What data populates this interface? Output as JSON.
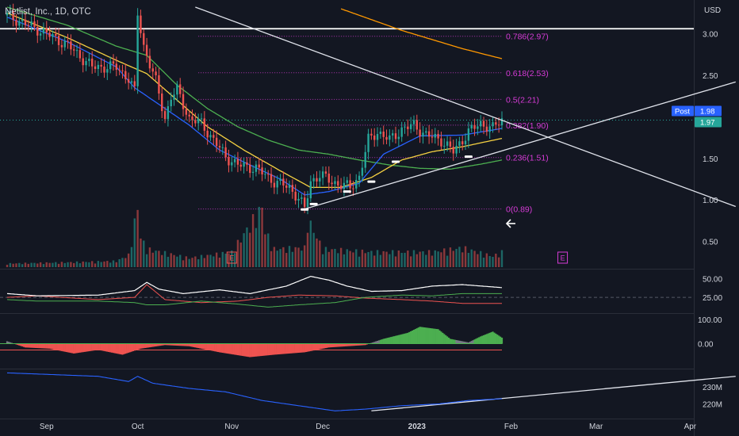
{
  "header": {
    "title": "Netlist, Inc., 1D, OTC"
  },
  "price_axis": {
    "currency": "USD",
    "ticks": [
      {
        "value": 3.0,
        "label": "3.00"
      },
      {
        "value": 2.5,
        "label": "2.50"
      },
      {
        "value": 2.0,
        "label": ""
      },
      {
        "value": 1.5,
        "label": "1.50"
      },
      {
        "value": 1.0,
        "label": "1.00"
      },
      {
        "value": 0.5,
        "label": "0.50"
      }
    ],
    "post_label": "Post",
    "post_value": "1.98",
    "last_value": "1.97",
    "post_price": 1.98,
    "last_price": 1.97
  },
  "osc1_axis": {
    "ticks": [
      {
        "value": 50,
        "label": "50.00"
      },
      {
        "value": 25,
        "label": "25.00"
      }
    ]
  },
  "osc2_axis": {
    "ticks": [
      {
        "value": 100,
        "label": "100.00"
      },
      {
        "value": 0,
        "label": "0.00"
      }
    ]
  },
  "obv_axis": {
    "ticks": [
      {
        "value": 230,
        "label": "230M"
      },
      {
        "value": 220,
        "label": "220M"
      }
    ]
  },
  "time_axis": {
    "labels": [
      {
        "label": "Sep",
        "day": 13,
        "bold": false
      },
      {
        "label": "Oct",
        "day": 43,
        "bold": false
      },
      {
        "label": "Nov",
        "day": 74,
        "bold": false
      },
      {
        "label": "Dec",
        "day": 104,
        "bold": false
      },
      {
        "label": "2023",
        "day": 135,
        "bold": true
      },
      {
        "label": "Feb",
        "day": 166,
        "bold": false
      },
      {
        "label": "Mar",
        "day": 194,
        "bold": false
      },
      {
        "label": "Apr",
        "day": 225,
        "bold": false
      }
    ]
  },
  "fib_levels": [
    {
      "label": "0.786(2.97)",
      "price": 2.97
    },
    {
      "label": "0.618(2.53)",
      "price": 2.53
    },
    {
      "label": "0.5(2.21)",
      "price": 2.21
    },
    {
      "label": "0.382(1.90)",
      "price": 1.9
    },
    {
      "label": "0.236(1.51)",
      "price": 1.51
    },
    {
      "label": "0(0.89)",
      "price": 0.89
    }
  ],
  "earnings_markers": [
    {
      "label": "E",
      "day": 74
    },
    {
      "label": "E",
      "day": 183
    }
  ],
  "colors": {
    "up": "#26a69a",
    "down": "#ef5350",
    "fib": "#d63bd6",
    "ema_fast": "#2962ff",
    "ma_mid": "#f5d142",
    "ma_slow": "#4caf50",
    "ma_long": "#ff9800",
    "trend": "#e0e3eb",
    "obv": "#2962ff",
    "accent": "#2962ff"
  },
  "chart_data": {
    "type": "candlestick",
    "title": "Netlist, Inc., 1D, OTC",
    "ylim": [
      0.4,
      3.3
    ],
    "x_range_days": [
      0,
      240
    ],
    "resistance_level": 3.06,
    "anchors": {
      "candle_close": [
        [
          0,
          3.22
        ],
        [
          6,
          3.12
        ],
        [
          12,
          3.02
        ],
        [
          20,
          2.86
        ],
        [
          28,
          2.6
        ],
        [
          36,
          2.6
        ],
        [
          40,
          2.46
        ],
        [
          42,
          2.3
        ],
        [
          43,
          3.24
        ],
        [
          45,
          2.85
        ],
        [
          49,
          2.42
        ],
        [
          52,
          1.98
        ],
        [
          54,
          2.24
        ],
        [
          56,
          2.32
        ],
        [
          60,
          1.98
        ],
        [
          64,
          1.92
        ],
        [
          68,
          1.72
        ],
        [
          72,
          1.52
        ],
        [
          76,
          1.42
        ],
        [
          82,
          1.38
        ],
        [
          88,
          1.22
        ],
        [
          93,
          1.15
        ],
        [
          96,
          1.02
        ],
        [
          98,
          0.89
        ],
        [
          100,
          1.22
        ],
        [
          103,
          1.3
        ],
        [
          107,
          1.22
        ],
        [
          110,
          1.18
        ],
        [
          113,
          1.15
        ],
        [
          116,
          1.28
        ],
        [
          119,
          1.72
        ],
        [
          122,
          1.82
        ],
        [
          126,
          1.72
        ],
        [
          130,
          1.85
        ],
        [
          134,
          1.9
        ],
        [
          138,
          1.78
        ],
        [
          143,
          1.72
        ],
        [
          147,
          1.58
        ],
        [
          152,
          1.82
        ],
        [
          156,
          1.92
        ],
        [
          160,
          1.86
        ],
        [
          163,
          1.97
        ]
      ],
      "ema_fast": [
        [
          0,
          3.2
        ],
        [
          20,
          2.9
        ],
        [
          36,
          2.6
        ],
        [
          42,
          2.35
        ],
        [
          50,
          2.15
        ],
        [
          60,
          1.9
        ],
        [
          70,
          1.6
        ],
        [
          80,
          1.42
        ],
        [
          90,
          1.25
        ],
        [
          98,
          1.06
        ],
        [
          106,
          1.1
        ],
        [
          116,
          1.2
        ],
        [
          124,
          1.55
        ],
        [
          136,
          1.77
        ],
        [
          150,
          1.78
        ],
        [
          163,
          1.86
        ]
      ],
      "ma_mid": [
        [
          0,
          3.25
        ],
        [
          20,
          2.95
        ],
        [
          36,
          2.68
        ],
        [
          46,
          2.52
        ],
        [
          56,
          2.2
        ],
        [
          66,
          1.88
        ],
        [
          78,
          1.6
        ],
        [
          90,
          1.35
        ],
        [
          100,
          1.15
        ],
        [
          110,
          1.15
        ],
        [
          120,
          1.27
        ],
        [
          130,
          1.48
        ],
        [
          140,
          1.58
        ],
        [
          150,
          1.64
        ],
        [
          163,
          1.74
        ]
      ],
      "ma_slow": [
        [
          0,
          3.32
        ],
        [
          20,
          3.1
        ],
        [
          36,
          2.85
        ],
        [
          46,
          2.74
        ],
        [
          56,
          2.38
        ],
        [
          66,
          2.1
        ],
        [
          76,
          1.88
        ],
        [
          86,
          1.72
        ],
        [
          96,
          1.6
        ],
        [
          106,
          1.55
        ],
        [
          116,
          1.48
        ],
        [
          126,
          1.42
        ],
        [
          136,
          1.38
        ],
        [
          146,
          1.37
        ],
        [
          156,
          1.43
        ],
        [
          163,
          1.48
        ]
      ],
      "ma_long": [
        [
          110,
          3.3
        ],
        [
          130,
          3.04
        ],
        [
          150,
          2.82
        ],
        [
          163,
          2.7
        ]
      ],
      "volume_m": [
        [
          0,
          0.6
        ],
        [
          20,
          0.8
        ],
        [
          36,
          1.0
        ],
        [
          40,
          2.0
        ],
        [
          43,
          10.0
        ],
        [
          44,
          5.0
        ],
        [
          46,
          3.0
        ],
        [
          60,
          1.5
        ],
        [
          74,
          2.5
        ],
        [
          84,
          10.0
        ],
        [
          85,
          6.0
        ],
        [
          88,
          3.0
        ],
        [
          98,
          3.2
        ],
        [
          99,
          8.0
        ],
        [
          104,
          3.0
        ],
        [
          120,
          2.5
        ],
        [
          140,
          2.5
        ],
        [
          150,
          3.2
        ],
        [
          160,
          1.8
        ],
        [
          163,
          2.5
        ]
      ],
      "osc1_a": [
        [
          0,
          30
        ],
        [
          10,
          27
        ],
        [
          30,
          28
        ],
        [
          42,
          34
        ],
        [
          46,
          45
        ],
        [
          50,
          36
        ],
        [
          58,
          30
        ],
        [
          70,
          35
        ],
        [
          80,
          30
        ],
        [
          92,
          40
        ],
        [
          100,
          53
        ],
        [
          106,
          48
        ],
        [
          112,
          40
        ],
        [
          120,
          33
        ],
        [
          130,
          34
        ],
        [
          140,
          40
        ],
        [
          150,
          42
        ],
        [
          163,
          38
        ]
      ],
      "osc1_b": [
        [
          0,
          25
        ],
        [
          10,
          27
        ],
        [
          30,
          22
        ],
        [
          42,
          25
        ],
        [
          46,
          42
        ],
        [
          52,
          22
        ],
        [
          64,
          18
        ],
        [
          76,
          20
        ],
        [
          86,
          25
        ],
        [
          96,
          28
        ],
        [
          108,
          27
        ],
        [
          118,
          24
        ],
        [
          130,
          22
        ],
        [
          140,
          20
        ],
        [
          150,
          17
        ],
        [
          163,
          17
        ]
      ],
      "osc1_c": [
        [
          0,
          22
        ],
        [
          10,
          20
        ],
        [
          30,
          20
        ],
        [
          42,
          18
        ],
        [
          46,
          15
        ],
        [
          52,
          15
        ],
        [
          64,
          20
        ],
        [
          76,
          16
        ],
        [
          86,
          12
        ],
        [
          96,
          15
        ],
        [
          108,
          18
        ],
        [
          118,
          25
        ],
        [
          130,
          28
        ],
        [
          140,
          27
        ],
        [
          150,
          30
        ],
        [
          163,
          30
        ]
      ],
      "osc2": [
        [
          0,
          10
        ],
        [
          6,
          -15
        ],
        [
          14,
          -20
        ],
        [
          22,
          -40
        ],
        [
          30,
          -25
        ],
        [
          38,
          -45
        ],
        [
          44,
          -20
        ],
        [
          52,
          -5
        ],
        [
          60,
          -10
        ],
        [
          70,
          -35
        ],
        [
          80,
          -55
        ],
        [
          88,
          -45
        ],
        [
          98,
          -35
        ],
        [
          106,
          -15
        ],
        [
          112,
          -10
        ],
        [
          118,
          -5
        ],
        [
          124,
          20
        ],
        [
          132,
          45
        ],
        [
          136,
          70
        ],
        [
          142,
          60
        ],
        [
          146,
          20
        ],
        [
          152,
          5
        ],
        [
          156,
          30
        ],
        [
          160,
          50
        ],
        [
          163,
          25
        ]
      ],
      "obv_m": [
        [
          0,
          238
        ],
        [
          30,
          236
        ],
        [
          40,
          233
        ],
        [
          43,
          236
        ],
        [
          48,
          232
        ],
        [
          60,
          229
        ],
        [
          72,
          227
        ],
        [
          84,
          222
        ],
        [
          96,
          219
        ],
        [
          108,
          216
        ],
        [
          118,
          217
        ],
        [
          130,
          219
        ],
        [
          142,
          220
        ],
        [
          152,
          222
        ],
        [
          163,
          223
        ]
      ]
    },
    "trendlines": [
      {
        "name": "resistance-downtrend",
        "p1": [
          62,
          3.32
        ],
        "p2": [
          240,
          0.92
        ]
      },
      {
        "name": "support-uptrend",
        "p1": [
          98,
          0.89
        ],
        "p2": [
          240,
          2.42
        ]
      },
      {
        "name": "obv-trend",
        "p1": [
          120,
          216
        ],
        "p2": [
          240,
          236
        ]
      }
    ],
    "pivot_marks": [
      [
        98,
        0.885
      ],
      [
        101,
        0.95
      ],
      [
        112,
        1.1
      ],
      [
        120,
        1.22
      ],
      [
        128,
        1.46
      ],
      [
        152,
        1.52
      ]
    ],
    "pane_ranges": {
      "osc1": [
        5,
        60
      ],
      "osc2": [
        -100,
        120
      ],
      "obv": [
        212,
        240
      ]
    }
  }
}
